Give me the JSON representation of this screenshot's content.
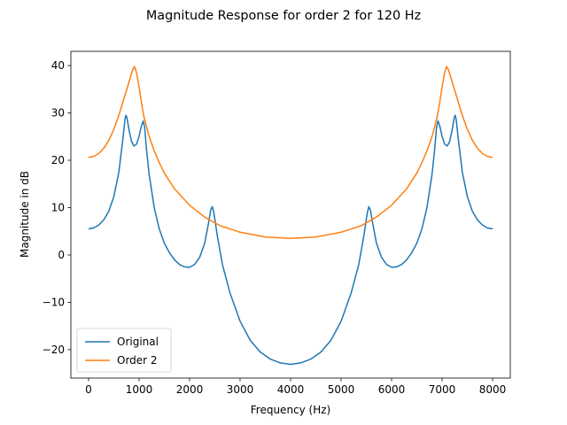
{
  "chart_data": {
    "type": "line",
    "title": "Magnitude Response for order 2 for 120 Hz",
    "xlabel": "Frequency (Hz)",
    "ylabel": "Magnitude in dB",
    "xlim": [
      -350,
      8350
    ],
    "ylim": [
      -26,
      43
    ],
    "xticks": [
      0,
      1000,
      2000,
      3000,
      4000,
      5000,
      6000,
      7000,
      8000
    ],
    "yticks": [
      -20,
      -10,
      0,
      10,
      20,
      30,
      40
    ],
    "xtick_labels": [
      "0",
      "1000",
      "2000",
      "3000",
      "4000",
      "5000",
      "6000",
      "7000",
      "8000"
    ],
    "ytick_labels": [
      "−20",
      "−10",
      "0",
      "10",
      "20",
      "30",
      "40"
    ],
    "grid": false,
    "legend_position": "lower-left",
    "series": [
      {
        "name": "Original",
        "color": "#1f77b4",
        "points": [
          [
            0,
            5.5
          ],
          [
            100,
            5.7
          ],
          [
            200,
            6.3
          ],
          [
            300,
            7.4
          ],
          [
            400,
            9.2
          ],
          [
            500,
            12.3
          ],
          [
            600,
            17.5
          ],
          [
            680,
            24.5
          ],
          [
            720,
            28.5
          ],
          [
            740,
            29.5
          ],
          [
            760,
            29.0
          ],
          [
            800,
            26.5
          ],
          [
            850,
            24.0
          ],
          [
            900,
            23.0
          ],
          [
            950,
            23.4
          ],
          [
            1000,
            25.0
          ],
          [
            1040,
            27.0
          ],
          [
            1080,
            28.3
          ],
          [
            1110,
            27.0
          ],
          [
            1150,
            22.0
          ],
          [
            1200,
            17.0
          ],
          [
            1300,
            10.0
          ],
          [
            1400,
            5.5
          ],
          [
            1500,
            2.5
          ],
          [
            1600,
            0.5
          ],
          [
            1700,
            -1.0
          ],
          [
            1800,
            -2.0
          ],
          [
            1900,
            -2.5
          ],
          [
            2000,
            -2.6
          ],
          [
            2100,
            -2.0
          ],
          [
            2200,
            -0.5
          ],
          [
            2300,
            2.5
          ],
          [
            2380,
            7.0
          ],
          [
            2420,
            9.5
          ],
          [
            2450,
            10.2
          ],
          [
            2480,
            9.0
          ],
          [
            2550,
            4.0
          ],
          [
            2650,
            -2.0
          ],
          [
            2800,
            -8.0
          ],
          [
            3000,
            -14.0
          ],
          [
            3200,
            -18.0
          ],
          [
            3400,
            -20.5
          ],
          [
            3600,
            -22.0
          ],
          [
            3800,
            -22.8
          ],
          [
            4000,
            -23.1
          ],
          [
            4200,
            -22.8
          ],
          [
            4400,
            -22.0
          ],
          [
            4600,
            -20.5
          ],
          [
            4800,
            -18.0
          ],
          [
            5000,
            -14.0
          ],
          [
            5200,
            -8.0
          ],
          [
            5350,
            -2.0
          ],
          [
            5450,
            4.0
          ],
          [
            5520,
            9.0
          ],
          [
            5550,
            10.2
          ],
          [
            5580,
            9.5
          ],
          [
            5620,
            7.0
          ],
          [
            5700,
            2.5
          ],
          [
            5800,
            -0.5
          ],
          [
            5900,
            -2.0
          ],
          [
            6000,
            -2.6
          ],
          [
            6100,
            -2.5
          ],
          [
            6200,
            -2.0
          ],
          [
            6300,
            -1.0
          ],
          [
            6400,
            0.5
          ],
          [
            6500,
            2.5
          ],
          [
            6600,
            5.5
          ],
          [
            6700,
            10.0
          ],
          [
            6800,
            17.0
          ],
          [
            6850,
            22.0
          ],
          [
            6890,
            27.0
          ],
          [
            6920,
            28.3
          ],
          [
            6960,
            27.0
          ],
          [
            7000,
            25.0
          ],
          [
            7050,
            23.4
          ],
          [
            7100,
            23.0
          ],
          [
            7150,
            24.0
          ],
          [
            7200,
            26.5
          ],
          [
            7240,
            29.0
          ],
          [
            7260,
            29.5
          ],
          [
            7280,
            28.5
          ],
          [
            7320,
            24.5
          ],
          [
            7400,
            17.5
          ],
          [
            7500,
            12.3
          ],
          [
            7600,
            9.2
          ],
          [
            7700,
            7.4
          ],
          [
            7800,
            6.3
          ],
          [
            7900,
            5.7
          ],
          [
            8000,
            5.5
          ]
        ]
      },
      {
        "name": "Order 2",
        "color": "#ff7f0e",
        "points": [
          [
            0,
            20.6
          ],
          [
            100,
            20.8
          ],
          [
            200,
            21.4
          ],
          [
            300,
            22.5
          ],
          [
            400,
            24.2
          ],
          [
            500,
            26.5
          ],
          [
            600,
            29.5
          ],
          [
            700,
            33.0
          ],
          [
            800,
            36.5
          ],
          [
            870,
            39.0
          ],
          [
            910,
            39.8
          ],
          [
            950,
            38.5
          ],
          [
            1000,
            35.5
          ],
          [
            1050,
            32.0
          ],
          [
            1100,
            29.0
          ],
          [
            1200,
            25.0
          ],
          [
            1300,
            22.0
          ],
          [
            1400,
            19.5
          ],
          [
            1500,
            17.3
          ],
          [
            1700,
            14.0
          ],
          [
            2000,
            10.5
          ],
          [
            2300,
            8.0
          ],
          [
            2600,
            6.2
          ],
          [
            3000,
            4.8
          ],
          [
            3500,
            3.8
          ],
          [
            4000,
            3.5
          ],
          [
            4500,
            3.8
          ],
          [
            5000,
            4.8
          ],
          [
            5400,
            6.2
          ],
          [
            5700,
            8.0
          ],
          [
            6000,
            10.5
          ],
          [
            6300,
            14.0
          ],
          [
            6500,
            17.3
          ],
          [
            6600,
            19.5
          ],
          [
            6700,
            22.0
          ],
          [
            6800,
            25.0
          ],
          [
            6900,
            29.0
          ],
          [
            6950,
            32.0
          ],
          [
            7000,
            35.5
          ],
          [
            7050,
            38.5
          ],
          [
            7090,
            39.8
          ],
          [
            7130,
            39.0
          ],
          [
            7200,
            36.5
          ],
          [
            7300,
            33.0
          ],
          [
            7400,
            29.5
          ],
          [
            7500,
            26.5
          ],
          [
            7600,
            24.2
          ],
          [
            7700,
            22.5
          ],
          [
            7800,
            21.4
          ],
          [
            7900,
            20.8
          ],
          [
            8000,
            20.6
          ]
        ]
      }
    ]
  }
}
